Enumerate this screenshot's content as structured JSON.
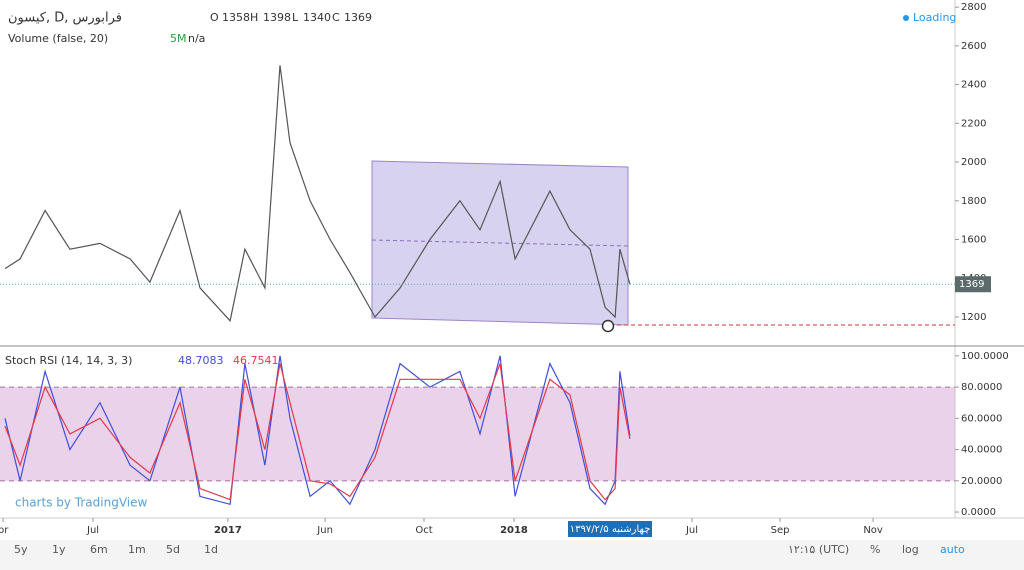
{
  "header": {
    "symbol": "کیسون, D, فرابورس",
    "ohlc": [
      {
        "label": "O",
        "value": 1358
      },
      {
        "label": "H",
        "value": 1398
      },
      {
        "label": "L",
        "value": 1340
      },
      {
        "label": "C",
        "value": 1369
      }
    ],
    "status": "Loading",
    "volume_study": "Volume (false, 20)",
    "volume_value": "5M",
    "volume_na": "n/a",
    "rsi_study": "Stoch RSI (14, 14, 3, 3)"
  },
  "watermark": "charts by TradingView",
  "crosshair_date": "چهارشنبه ۱۳۹۷/۲/۵",
  "toolbar": {
    "ranges": [
      "5y",
      "1y",
      "6m",
      "1m",
      "5d",
      "1d"
    ],
    "clock": "۱۲:۱۵ (UTC)",
    "percent": "%",
    "log": "log",
    "auto": "auto"
  },
  "chart_data": [
    {
      "type": "line",
      "color": "#555555",
      "xlim": [
        2.82,
        37.1
      ],
      "ylim": [
        1050,
        2837
      ],
      "yticks": [
        1200,
        1400,
        1600,
        1800,
        2000,
        2200,
        2400,
        2600,
        2800
      ],
      "x": [
        3.0,
        3.54,
        4.44,
        5.33,
        6.41,
        7.49,
        8.2,
        9.28,
        10.0,
        11.08,
        11.61,
        12.33,
        12.87,
        13.23,
        13.95,
        14.67,
        15.38,
        16.28,
        17.18,
        18.25,
        19.33,
        20.05,
        20.77,
        21.31,
        22.56,
        23.28,
        24.0,
        24.54,
        24.9,
        25.07,
        25.43
      ],
      "values": [
        1450,
        1500,
        1750,
        1550,
        1580,
        1500,
        1380,
        1750,
        1350,
        1180,
        1550,
        1350,
        2500,
        2100,
        1800,
        1600,
        1430,
        1200,
        1350,
        1600,
        1800,
        1650,
        1900,
        1500,
        1850,
        1650,
        1550,
        1250,
        1200,
        1550,
        1369
      ]
    },
    {
      "type": "line",
      "xlim": [
        2.82,
        37.1
      ],
      "ylim": [
        -3.8,
        105
      ],
      "band": [
        20,
        80
      ],
      "yticks": [
        {
          "value": 0,
          "label": "0.0000"
        },
        {
          "value": 20,
          "label": "20.0000"
        },
        {
          "value": 40,
          "label": "40.0000"
        },
        {
          "value": 60,
          "label": "60.0000"
        },
        {
          "value": 80,
          "label": "80.0000"
        },
        {
          "value": 100,
          "label": "100.0000"
        }
      ],
      "xticks": [
        {
          "value": 2.93,
          "label": "pr"
        },
        {
          "value": 6.16,
          "label": "Jul"
        },
        {
          "value": 11.0,
          "label": "2017"
        },
        {
          "value": 14.49,
          "label": "Jun"
        },
        {
          "value": 18.04,
          "label": "Oct"
        },
        {
          "value": 21.27,
          "label": "2018"
        },
        {
          "value": 27.66,
          "label": "Jul"
        },
        {
          "value": 30.82,
          "label": "Sep"
        },
        {
          "value": 34.16,
          "label": "Nov"
        }
      ],
      "x": [
        3.0,
        3.54,
        4.44,
        5.33,
        6.41,
        7.49,
        8.2,
        9.28,
        10.0,
        11.08,
        11.61,
        12.33,
        12.87,
        13.23,
        13.95,
        14.67,
        15.38,
        16.28,
        17.18,
        18.25,
        19.33,
        20.05,
        20.77,
        21.31,
        22.56,
        23.28,
        24.0,
        24.54,
        24.9,
        25.07,
        25.43
      ],
      "series": [
        {
          "color": "#3f4fd8",
          "values": [
            60,
            20,
            90,
            40,
            70,
            30,
            20,
            80,
            10,
            5,
            95,
            30,
            100,
            60,
            10,
            20,
            5,
            40,
            95,
            80,
            90,
            50,
            100,
            10,
            95,
            70,
            15,
            5,
            20,
            90,
            48.7083
          ]
        },
        {
          "color": "#e23a4a",
          "values": [
            55,
            30,
            80,
            50,
            60,
            35,
            25,
            70,
            15,
            8,
            85,
            40,
            95,
            70,
            20,
            18,
            10,
            35,
            85,
            85,
            85,
            60,
            95,
            20,
            85,
            75,
            20,
            8,
            15,
            80,
            46.7541
          ]
        }
      ]
    }
  ]
}
